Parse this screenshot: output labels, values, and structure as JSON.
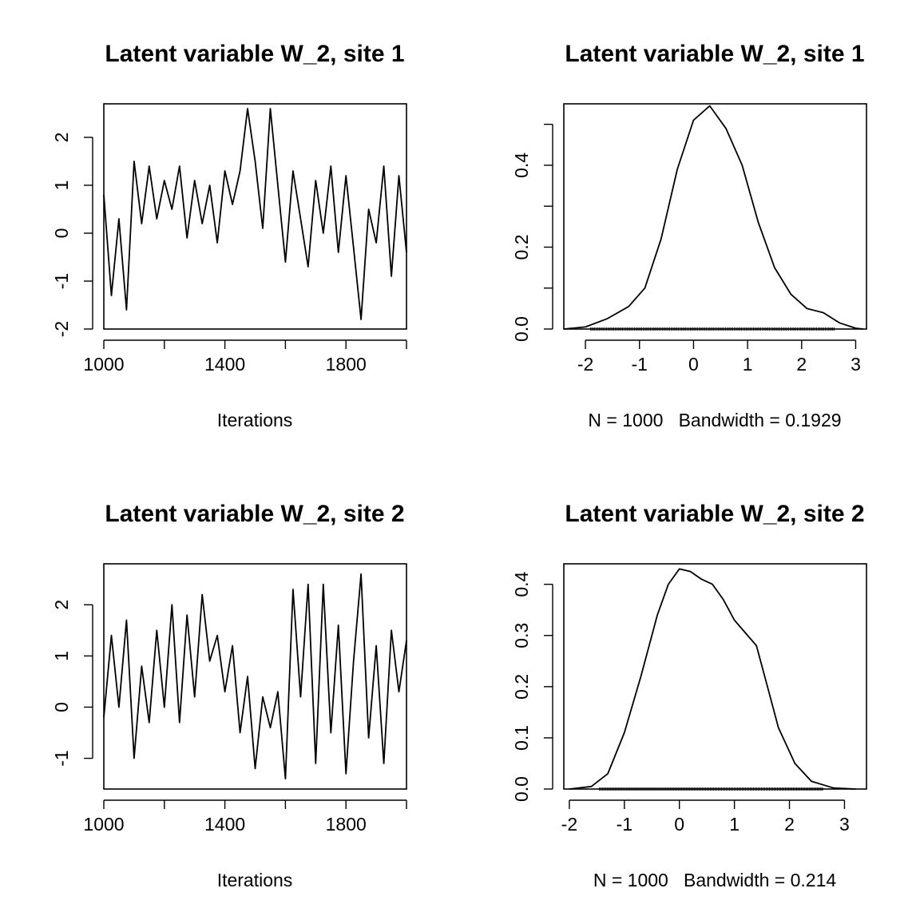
{
  "chart_data": [
    {
      "type": "line",
      "kind": "trace",
      "title": "Latent variable W_2, site 1",
      "xlabel": "Iterations",
      "ylabel": "",
      "xlim": [
        1000,
        2000
      ],
      "ylim": [
        -2,
        2.7
      ],
      "xticks": [
        1000,
        1200,
        1400,
        1600,
        1800,
        2000
      ],
      "xtick_labels": [
        "1000",
        "",
        "1400",
        "",
        "1800",
        ""
      ],
      "yticks": [
        -2,
        -1,
        0,
        1,
        2
      ],
      "ytick_labels": [
        "-2",
        "-1",
        "0",
        "1",
        "2"
      ],
      "x": [
        1000,
        1025,
        1050,
        1075,
        1100,
        1125,
        1150,
        1175,
        1200,
        1225,
        1250,
        1275,
        1300,
        1325,
        1350,
        1375,
        1400,
        1425,
        1450,
        1475,
        1500,
        1525,
        1550,
        1575,
        1600,
        1625,
        1650,
        1675,
        1700,
        1725,
        1750,
        1775,
        1800,
        1825,
        1850,
        1875,
        1900,
        1925,
        1950,
        1975,
        2000
      ],
      "y": [
        0.8,
        -1.3,
        0.3,
        -1.6,
        1.5,
        0.2,
        1.4,
        0.3,
        1.1,
        0.5,
        1.4,
        -0.1,
        1.1,
        0.2,
        1.0,
        -0.2,
        1.3,
        0.6,
        1.3,
        2.6,
        1.5,
        0.1,
        2.6,
        1.0,
        -0.6,
        1.3,
        0.3,
        -0.7,
        1.1,
        0.0,
        1.4,
        -0.4,
        1.2,
        -0.3,
        -1.8,
        0.5,
        -0.2,
        1.4,
        -0.9,
        1.2,
        -0.4
      ],
      "grid": false
    },
    {
      "type": "line",
      "kind": "density",
      "title": "Latent variable W_2, site 1",
      "xlabel": "N = 1000   Bandwidth = 0.1929",
      "ylabel": "",
      "xlim": [
        -2.4,
        3.2
      ],
      "ylim": [
        0,
        0.55
      ],
      "xticks": [
        -2,
        -1,
        0,
        1,
        2,
        3
      ],
      "xtick_labels": [
        "-2",
        "-1",
        "0",
        "1",
        "2",
        "3"
      ],
      "yticks": [
        0.0,
        0.1,
        0.2,
        0.3,
        0.4,
        0.5
      ],
      "ytick_labels": [
        "0.0",
        "",
        "0.2",
        "",
        "0.4",
        ""
      ],
      "x": [
        -2.4,
        -2.0,
        -1.6,
        -1.2,
        -0.9,
        -0.6,
        -0.3,
        0.0,
        0.3,
        0.6,
        0.9,
        1.2,
        1.5,
        1.8,
        2.1,
        2.4,
        2.7,
        3.0,
        3.14
      ],
      "y": [
        0.0,
        0.005,
        0.025,
        0.055,
        0.1,
        0.22,
        0.39,
        0.51,
        0.545,
        0.49,
        0.4,
        0.26,
        0.15,
        0.085,
        0.05,
        0.04,
        0.015,
        0.002,
        0.0
      ],
      "rug_range": [
        -1.9,
        2.6
      ],
      "grid": false
    },
    {
      "type": "line",
      "kind": "trace",
      "title": "Latent variable W_2, site 2",
      "xlabel": "Iterations",
      "ylabel": "",
      "xlim": [
        1000,
        2000
      ],
      "ylim": [
        -1.6,
        2.8
      ],
      "xticks": [
        1000,
        1200,
        1400,
        1600,
        1800,
        2000
      ],
      "xtick_labels": [
        "1000",
        "",
        "1400",
        "",
        "1800",
        ""
      ],
      "yticks": [
        -1,
        0,
        1,
        2
      ],
      "ytick_labels": [
        "-1",
        "0",
        "1",
        "2"
      ],
      "x": [
        1000,
        1025,
        1050,
        1075,
        1100,
        1125,
        1150,
        1175,
        1200,
        1225,
        1250,
        1275,
        1300,
        1325,
        1350,
        1375,
        1400,
        1425,
        1450,
        1475,
        1500,
        1525,
        1550,
        1575,
        1600,
        1625,
        1650,
        1675,
        1700,
        1725,
        1750,
        1775,
        1800,
        1825,
        1850,
        1875,
        1900,
        1925,
        1950,
        1975,
        2000
      ],
      "y": [
        -0.2,
        1.4,
        0.0,
        1.7,
        -1.0,
        0.8,
        -0.3,
        1.5,
        0.0,
        2.0,
        -0.3,
        1.8,
        0.2,
        2.2,
        0.9,
        1.4,
        0.3,
        1.2,
        -0.5,
        0.6,
        -1.2,
        0.2,
        -0.4,
        0.3,
        -1.4,
        2.3,
        0.2,
        2.4,
        -1.1,
        2.4,
        -0.5,
        1.6,
        -1.3,
        0.9,
        2.6,
        -0.6,
        1.2,
        -1.1,
        1.5,
        0.3,
        1.3
      ],
      "grid": false
    },
    {
      "type": "line",
      "kind": "density",
      "title": "Latent variable W_2, site 2",
      "xlabel": "N = 1000   Bandwidth = 0.214",
      "ylabel": "",
      "xlim": [
        -2.1,
        3.4
      ],
      "ylim": [
        0,
        0.44
      ],
      "xticks": [
        -2,
        -1,
        0,
        1,
        2,
        3
      ],
      "xtick_labels": [
        "-2",
        "-1",
        "0",
        "1",
        "2",
        "3"
      ],
      "yticks": [
        0.0,
        0.1,
        0.2,
        0.3,
        0.4
      ],
      "ytick_labels": [
        "0.0",
        "0.1",
        "0.2",
        "0.3",
        "0.4"
      ],
      "x": [
        -2.0,
        -1.6,
        -1.3,
        -1.0,
        -0.7,
        -0.4,
        -0.2,
        0.0,
        0.2,
        0.4,
        0.6,
        0.8,
        1.0,
        1.2,
        1.4,
        1.6,
        1.8,
        2.1,
        2.4,
        2.8,
        3.2
      ],
      "y": [
        0.0,
        0.005,
        0.03,
        0.11,
        0.22,
        0.34,
        0.4,
        0.43,
        0.425,
        0.41,
        0.4,
        0.37,
        0.33,
        0.305,
        0.28,
        0.2,
        0.12,
        0.05,
        0.015,
        0.002,
        0.0
      ],
      "rug_range": [
        -1.45,
        2.6
      ],
      "grid": false
    }
  ]
}
